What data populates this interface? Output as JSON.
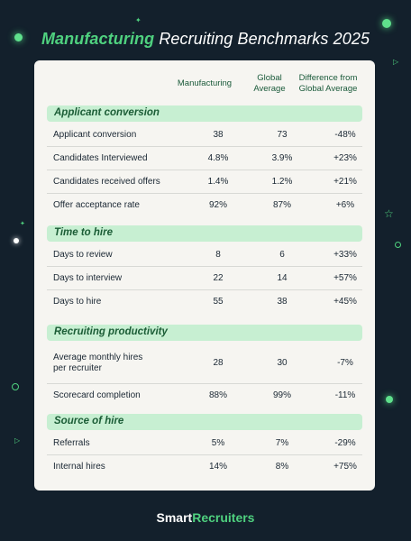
{
  "title": {
    "highlight": "Manufacturing",
    "rest": " Recruiting Benchmarks 2025"
  },
  "columns": {
    "manufacturing": "Manufacturing",
    "global": "Global\nAverage",
    "difference": "Difference from\nGlobal Average"
  },
  "sections": [
    {
      "name": "Applicant conversion",
      "rows": [
        {
          "label": "Applicant conversion",
          "manufacturing": "38",
          "global": "73",
          "diff": "-48%"
        },
        {
          "label": "Candidates Interviewed",
          "manufacturing": "4.8%",
          "global": "3.9%",
          "diff": "+23%"
        },
        {
          "label": "Candidates received offers",
          "manufacturing": "1.4%",
          "global": "1.2%",
          "diff": "+21%"
        },
        {
          "label": "Offer acceptance rate",
          "manufacturing": "92%",
          "global": "87%",
          "diff": "+6%"
        }
      ]
    },
    {
      "name": "Time to hire",
      "rows": [
        {
          "label": "Days to review",
          "manufacturing": "8",
          "global": "6",
          "diff": "+33%"
        },
        {
          "label": "Days to interview",
          "manufacturing": "22",
          "global": "14",
          "diff": "+57%"
        },
        {
          "label": "Days to hire",
          "manufacturing": "55",
          "global": "38",
          "diff": "+45%"
        }
      ]
    },
    {
      "name": "Recruiting productivity",
      "rows": [
        {
          "label": "Average monthly hires\nper recruiter",
          "manufacturing": "28",
          "global": "30",
          "diff": "-7%"
        },
        {
          "label": "Scorecard completion",
          "manufacturing": "88%",
          "global": "99%",
          "diff": "-11%"
        }
      ]
    },
    {
      "name": "Source of hire",
      "rows": [
        {
          "label": "Referrals",
          "manufacturing": "5%",
          "global": "7%",
          "diff": "-29%"
        },
        {
          "label": "Internal hires",
          "manufacturing": "14%",
          "global": "8%",
          "diff": "+75%"
        }
      ]
    }
  ],
  "footer": {
    "brand_a": "Smart",
    "brand_b": "Recruiters"
  },
  "colors": {
    "accent": "#4fd17f",
    "background": "#13202c",
    "section": "#c7efd2"
  }
}
